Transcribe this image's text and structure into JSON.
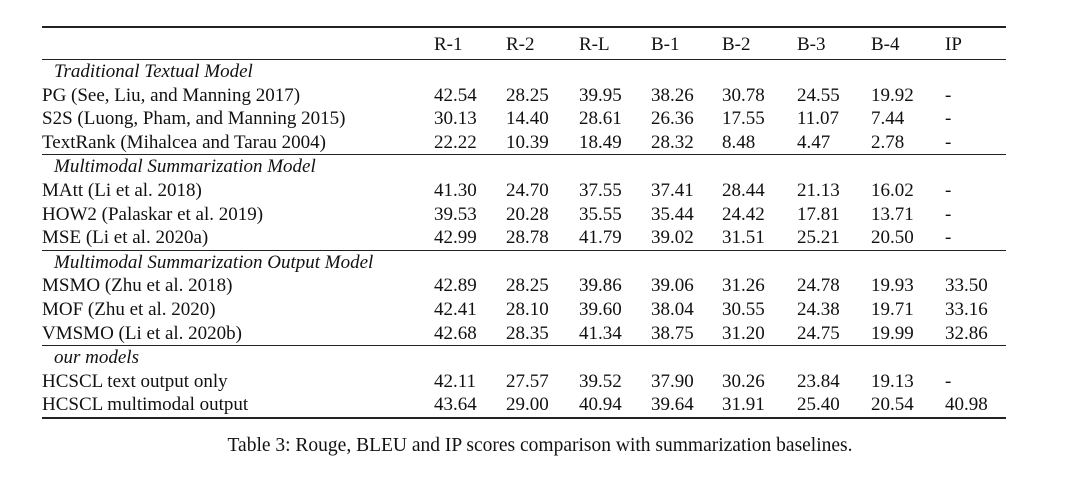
{
  "columns": [
    "R-1",
    "R-2",
    "R-L",
    "B-1",
    "B-2",
    "B-3",
    "B-4",
    "IP"
  ],
  "groups": [
    {
      "title": "Traditional Textual Model",
      "rows": [
        {
          "model": "PG (See, Liu, and Manning 2017)",
          "values": [
            "42.54",
            "28.25",
            "39.95",
            "38.26",
            "30.78",
            "24.55",
            "19.92",
            "-"
          ],
          "bold": []
        },
        {
          "model": "S2S (Luong, Pham, and Manning 2015)",
          "values": [
            "30.13",
            "14.40",
            "28.61",
            "26.36",
            "17.55",
            "11.07",
            "7.44",
            "-"
          ],
          "bold": []
        },
        {
          "model": "TextRank (Mihalcea and Tarau 2004)",
          "values": [
            "22.22",
            "10.39",
            "18.49",
            "28.32",
            "8.48",
            "4.47",
            "2.78",
            "-"
          ],
          "bold": []
        }
      ]
    },
    {
      "title": "Multimodal Summarization Model",
      "rows": [
        {
          "model": "MAtt (Li et al. 2018)",
          "values": [
            "41.30",
            "24.70",
            "37.55",
            "37.41",
            "28.44",
            "21.13",
            "16.02",
            "-"
          ],
          "bold": []
        },
        {
          "model": "HOW2 (Palaskar et al. 2019)",
          "values": [
            "39.53",
            "20.28",
            "35.55",
            "35.44",
            "24.42",
            "17.81",
            "13.71",
            "-"
          ],
          "bold": []
        },
        {
          "model": "MSE (Li et al. 2020a)",
          "values": [
            "42.99",
            "28.78",
            "41.79",
            "39.02",
            "31.51",
            "25.21",
            "20.50",
            "-"
          ],
          "bold": [
            2
          ]
        }
      ]
    },
    {
      "title": "Multimodal Summarization Output Model",
      "rows": [
        {
          "model": "MSMO (Zhu et al. 2018)",
          "values": [
            "42.89",
            "28.25",
            "39.86",
            "39.06",
            "31.26",
            "24.78",
            "19.93",
            "33.50"
          ],
          "bold": []
        },
        {
          "model": "MOF (Zhu et al. 2020)",
          "values": [
            "42.41",
            "28.10",
            "39.60",
            "38.04",
            "30.55",
            "24.38",
            "19.71",
            "33.16"
          ],
          "bold": []
        },
        {
          "model": "VMSMO (Li et al. 2020b)",
          "values": [
            "42.68",
            "28.35",
            "41.34",
            "38.75",
            "31.20",
            "24.75",
            "19.99",
            "32.86"
          ],
          "bold": []
        }
      ]
    },
    {
      "title": "our models",
      "rows": [
        {
          "model": "HCSCL text output only",
          "values": [
            "42.11",
            "27.57",
            "39.52",
            "37.90",
            "30.26",
            "23.84",
            "19.13",
            "-"
          ],
          "bold": []
        },
        {
          "model": "HCSCL multimodal output",
          "values": [
            "43.64",
            "29.00",
            "40.94",
            "39.64",
            "31.91",
            "25.40",
            "20.54",
            "40.98"
          ],
          "bold": [
            0,
            1,
            3,
            4,
            5,
            6,
            7
          ]
        }
      ]
    }
  ],
  "caption": "Table 3: Rouge, BLEU and IP scores comparison with summarization baselines."
}
